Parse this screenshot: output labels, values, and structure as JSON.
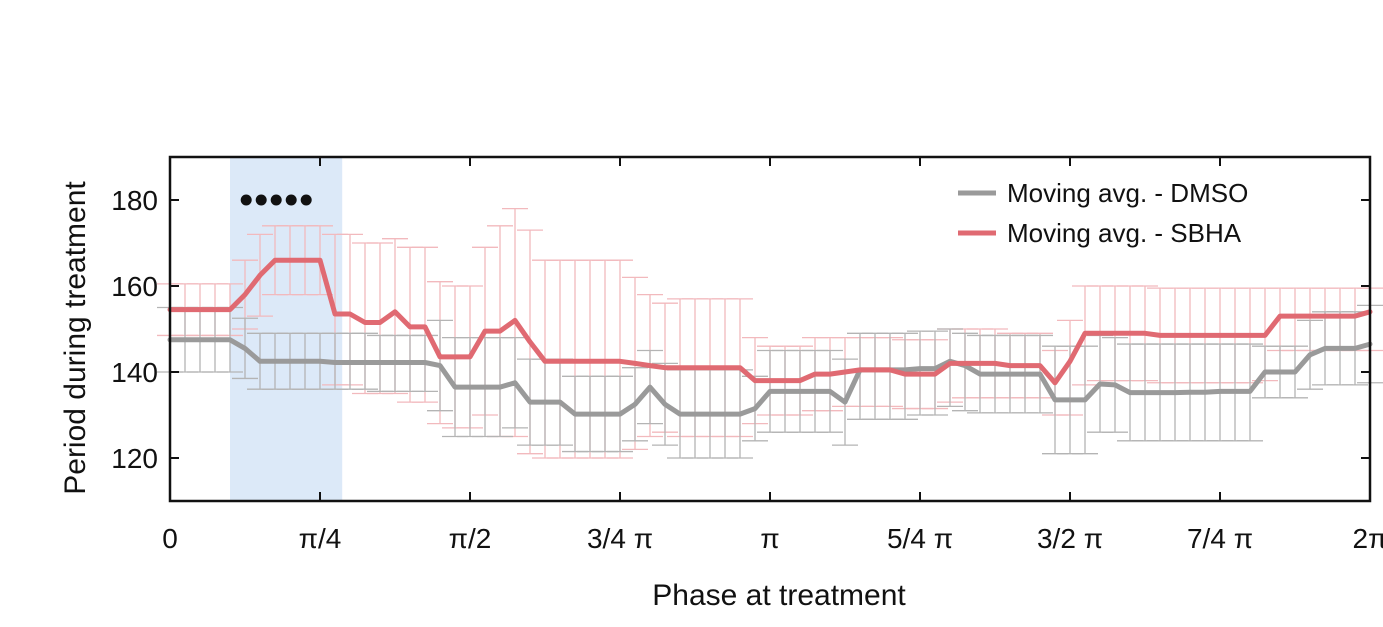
{
  "chart_data": {
    "type": "line",
    "xlabel": "Phase at treatment",
    "ylabel": "Period during  treatment",
    "xlim": [
      0,
      2
    ],
    "ylim": [
      110,
      190
    ],
    "x_unit": "π",
    "x_ticks": [
      {
        "value": 0,
        "label": "0"
      },
      {
        "value": 0.25,
        "label": "π/4"
      },
      {
        "value": 0.5,
        "label": "π/2"
      },
      {
        "value": 0.75,
        "label": "3/4 π"
      },
      {
        "value": 1.0,
        "label": "π"
      },
      {
        "value": 1.25,
        "label": "5/4 π"
      },
      {
        "value": 1.5,
        "label": "3/2 π"
      },
      {
        "value": 1.75,
        "label": "7/4 π"
      },
      {
        "value": 2.0,
        "label": "2π"
      }
    ],
    "y_ticks": [
      {
        "value": 120,
        "label": "120"
      },
      {
        "value": 140,
        "label": "140"
      },
      {
        "value": 160,
        "label": "160"
      },
      {
        "value": 180,
        "label": "180"
      }
    ],
    "grid": false,
    "legend_position": "top-right",
    "highlight_band": {
      "x_start": 0.1,
      "x_end": 0.287,
      "color": "#dce9f8"
    },
    "significance_markers": {
      "symbol": "●",
      "y": 180,
      "x": [
        0.127,
        0.152,
        0.177,
        0.202,
        0.227
      ]
    },
    "series": [
      {
        "name": "Moving avg. - DMSO",
        "color": "#9a9a9a",
        "error_color": "#b4b4b4",
        "x": [
          0,
          0.025,
          0.05,
          0.075,
          0.1,
          0.125,
          0.15,
          0.175,
          0.2,
          0.225,
          0.25,
          0.275,
          0.3,
          0.325,
          0.35,
          0.375,
          0.4,
          0.425,
          0.45,
          0.475,
          0.5,
          0.525,
          0.55,
          0.575,
          0.6,
          0.625,
          0.65,
          0.675,
          0.7,
          0.725,
          0.75,
          0.775,
          0.8,
          0.825,
          0.85,
          0.875,
          0.9,
          0.925,
          0.95,
          0.975,
          1.0,
          1.025,
          1.05,
          1.075,
          1.1,
          1.125,
          1.15,
          1.175,
          1.2,
          1.225,
          1.25,
          1.275,
          1.3,
          1.325,
          1.35,
          1.375,
          1.4,
          1.425,
          1.45,
          1.475,
          1.5,
          1.525,
          1.55,
          1.575,
          1.6,
          1.625,
          1.65,
          1.675,
          1.7,
          1.725,
          1.75,
          1.775,
          1.8,
          1.825,
          1.85,
          1.875,
          1.9,
          1.925,
          1.95,
          1.975,
          2.0
        ],
        "y": [
          147.5,
          147.5,
          147.5,
          147.5,
          147.5,
          145.5,
          142.5,
          142.5,
          142.5,
          142.5,
          142.5,
          142.2,
          142.2,
          142.2,
          142.2,
          142.2,
          142.2,
          142.2,
          141.5,
          136.5,
          136.5,
          136.5,
          136.5,
          137.5,
          133,
          133,
          133,
          130.2,
          130.2,
          130.2,
          130.2,
          132.5,
          136.5,
          132.5,
          130.2,
          130.2,
          130.2,
          130.2,
          130.2,
          131.5,
          135.5,
          135.5,
          135.5,
          135.5,
          135.5,
          133,
          140.5,
          140.5,
          140.5,
          140.5,
          140.8,
          140.8,
          142.5,
          141.5,
          139.5,
          139.5,
          139.5,
          139.5,
          139.5,
          133.5,
          133.5,
          133.5,
          137.2,
          137,
          135.2,
          135.2,
          135.2,
          135.2,
          135.3,
          135.3,
          135.5,
          135.5,
          135.5,
          140,
          140,
          140,
          144,
          145.5,
          145.5,
          145.5,
          146.5
        ],
        "error_low": [
          140,
          140,
          140,
          140,
          140,
          138.5,
          136,
          136,
          136,
          136,
          136,
          136,
          136,
          136,
          135.5,
          135.5,
          135.5,
          135.5,
          131,
          125,
          125,
          125,
          125,
          127,
          123,
          123,
          123,
          121.5,
          121.5,
          121.5,
          121.5,
          124,
          128,
          123,
          120,
          120,
          120,
          120,
          120,
          124,
          126,
          126,
          126,
          126,
          126,
          123,
          129,
          129,
          129,
          129,
          130,
          130,
          132,
          131,
          130.5,
          130.5,
          130.5,
          130.5,
          130.5,
          121,
          121,
          121,
          126,
          126,
          124,
          124,
          124,
          124,
          124,
          124,
          124,
          124,
          124,
          134,
          134,
          134,
          136,
          137,
          137,
          137,
          137.5
        ],
        "error_high": [
          155,
          155,
          155,
          155,
          155,
          152.5,
          149,
          149,
          149,
          149,
          149,
          149,
          149,
          149,
          148.5,
          148.5,
          148.5,
          148.5,
          152,
          148,
          148,
          148,
          148,
          148,
          143,
          143,
          143,
          139,
          139,
          139,
          139,
          141,
          145,
          142,
          140.5,
          140.5,
          140.5,
          140.5,
          140.5,
          139,
          145,
          145,
          145,
          145,
          145,
          143,
          149,
          149,
          149,
          149,
          149.5,
          149.5,
          150,
          149,
          148.5,
          148.5,
          148.5,
          148.5,
          148.5,
          146,
          146,
          146,
          148.5,
          148,
          146.5,
          146.5,
          146.5,
          146.5,
          146.5,
          146.5,
          146.5,
          146.5,
          146.5,
          146,
          146,
          146,
          152,
          154,
          154,
          154,
          155.5
        ]
      },
      {
        "name": "Moving avg. - SBHA",
        "color": "#e06a72",
        "error_color": "#f2b9bd",
        "x": [
          0,
          0.025,
          0.05,
          0.075,
          0.1,
          0.125,
          0.15,
          0.175,
          0.2,
          0.225,
          0.25,
          0.275,
          0.3,
          0.325,
          0.35,
          0.375,
          0.4,
          0.425,
          0.45,
          0.475,
          0.5,
          0.525,
          0.55,
          0.575,
          0.6,
          0.625,
          0.65,
          0.675,
          0.7,
          0.725,
          0.75,
          0.775,
          0.8,
          0.825,
          0.85,
          0.875,
          0.9,
          0.925,
          0.95,
          0.975,
          1.0,
          1.025,
          1.05,
          1.075,
          1.1,
          1.125,
          1.15,
          1.175,
          1.2,
          1.225,
          1.25,
          1.275,
          1.3,
          1.325,
          1.35,
          1.375,
          1.4,
          1.425,
          1.45,
          1.475,
          1.5,
          1.525,
          1.55,
          1.575,
          1.6,
          1.625,
          1.65,
          1.675,
          1.7,
          1.725,
          1.75,
          1.775,
          1.8,
          1.825,
          1.85,
          1.875,
          1.9,
          1.925,
          1.95,
          1.975,
          2.0
        ],
        "y": [
          154.5,
          154.5,
          154.5,
          154.5,
          154.5,
          158,
          162.5,
          166,
          166,
          166,
          166,
          153.5,
          153.5,
          151.5,
          151.5,
          154,
          150.5,
          150.5,
          143.5,
          143.5,
          143.5,
          149.5,
          149.5,
          152,
          147,
          142.5,
          142.5,
          142.5,
          142.5,
          142.5,
          142.5,
          142,
          141.5,
          141,
          141,
          141,
          141,
          141,
          141,
          138,
          138,
          138,
          138,
          139.5,
          139.5,
          140,
          140.5,
          140.5,
          140.5,
          139.5,
          139.5,
          139.5,
          142,
          142,
          142,
          142,
          141.5,
          141.5,
          141.5,
          137.5,
          142.5,
          149,
          149,
          149,
          149,
          149,
          148.5,
          148.5,
          148.5,
          148.5,
          148.5,
          148.5,
          148.5,
          148.5,
          153,
          153,
          153,
          153,
          153,
          153,
          154
        ],
        "error_low": [
          148.5,
          148.5,
          148.5,
          148.5,
          148.5,
          150,
          153,
          158,
          158,
          158,
          158,
          137,
          137,
          135,
          135,
          135,
          133,
          133,
          128,
          127,
          127,
          130,
          125,
          125,
          121,
          120,
          120,
          120,
          120,
          120,
          120,
          122,
          125,
          126,
          125,
          125,
          125,
          125,
          125,
          128,
          130,
          130,
          130,
          131,
          131,
          132,
          132,
          132,
          132,
          131.5,
          131.5,
          131.5,
          133,
          134,
          134,
          134,
          134,
          134,
          134,
          130,
          130,
          137,
          138,
          138,
          138,
          138,
          137.5,
          137.5,
          137.5,
          137.5,
          137.5,
          137.5,
          137.5,
          138,
          145,
          145,
          145,
          145,
          145,
          145,
          145
        ],
        "error_high": [
          160.5,
          160.5,
          160.5,
          160.5,
          160.5,
          166,
          172,
          174,
          174,
          174,
          174,
          172,
          172,
          170,
          170,
          171,
          169,
          169,
          161,
          160,
          160,
          169,
          174,
          178,
          173,
          166,
          166,
          166,
          166,
          166,
          166,
          162,
          158,
          156,
          157,
          157,
          157,
          157,
          157,
          148,
          146,
          146,
          146,
          148,
          148,
          148,
          148,
          148,
          148,
          147.5,
          147.5,
          147.5,
          150,
          150,
          150,
          150,
          149,
          149,
          149,
          145,
          152,
          160,
          160,
          160,
          160,
          160,
          159.5,
          159.5,
          159.5,
          159.5,
          159.5,
          159.5,
          159.5,
          159.5,
          159.5,
          159.5,
          159.5,
          159.5,
          159.5,
          159.5,
          159.5
        ]
      }
    ]
  }
}
